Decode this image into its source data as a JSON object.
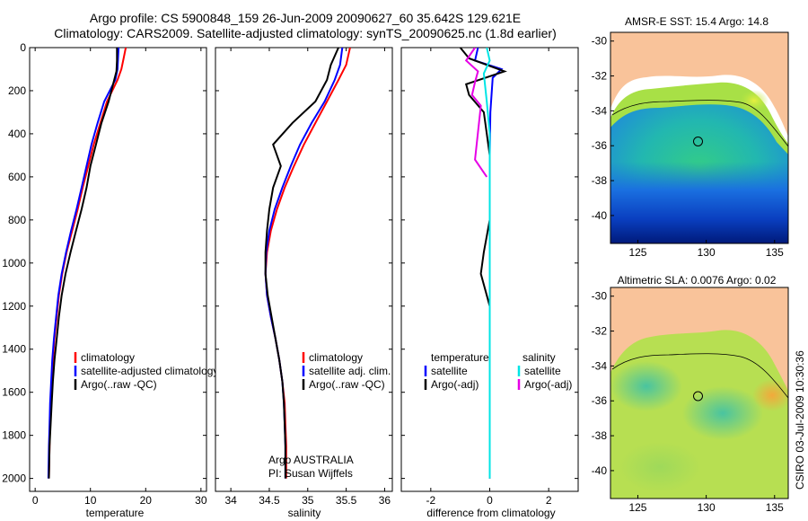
{
  "title": {
    "line1": "Argo profile: CS 5900848_159 26-Jun-2009 20090627_60 35.642S 129.621E",
    "line2": "Climatology: CARS2009. Satellite-adjusted climatology: synTS_20090625.nc (1.8d earlier)"
  },
  "side_credit": "CSIRO 03-Jul-2009 10:30:36",
  "colors": {
    "climatology": "#ff0000",
    "satellite": "#0000ff",
    "argo": "#000000",
    "sat_salinity": "#00e5e5",
    "argo_salinity": "#e600e6",
    "land": "#f9c39a"
  },
  "chart_data": [
    {
      "type": "line",
      "panel": "temperature",
      "xlabel": "temperature",
      "ylabel": "",
      "xlim": [
        -1,
        31
      ],
      "ylim": [
        2060,
        0
      ],
      "y_reversed": true,
      "xticks": [
        0,
        10,
        20,
        30
      ],
      "yticks": [
        0,
        200,
        400,
        600,
        800,
        1000,
        1200,
        1400,
        1600,
        1800,
        2000
      ],
      "legend_position": "lower-right",
      "legend": [
        "climatology",
        "satellite-adjusted climatology",
        "Argo(..raw -QC)"
      ],
      "series": [
        {
          "name": "climatology",
          "color": "#ff0000",
          "x": [
            16.4,
            16.0,
            15.6,
            14.9,
            13.0,
            11.8,
            10.6,
            9.6,
            8.6,
            7.7,
            6.7,
            5.7,
            4.9,
            4.3,
            3.9,
            3.5,
            3.2,
            3.0,
            2.8,
            2.7,
            2.6,
            2.5
          ],
          "y": [
            0,
            50,
            100,
            150,
            250,
            350,
            450,
            550,
            650,
            750,
            850,
            950,
            1050,
            1150,
            1250,
            1350,
            1450,
            1550,
            1650,
            1750,
            1850,
            2000
          ]
        },
        {
          "name": "satellite-adjusted climatology",
          "color": "#0000ff",
          "x": [
            15.1,
            15.0,
            14.9,
            14.5,
            12.5,
            11.3,
            10.2,
            9.3,
            8.4,
            7.5,
            6.5,
            5.6,
            4.8,
            4.2,
            3.8,
            3.4,
            3.1,
            2.9,
            2.7,
            2.6,
            2.5,
            2.4
          ],
          "y": [
            0,
            50,
            100,
            150,
            250,
            350,
            450,
            550,
            650,
            750,
            850,
            950,
            1050,
            1150,
            1250,
            1350,
            1450,
            1550,
            1650,
            1750,
            1850,
            2000
          ]
        },
        {
          "name": "Argo(..raw -QC)",
          "color": "#000000",
          "x": [
            14.8,
            14.8,
            14.7,
            14.3,
            13.3,
            12.0,
            11.0,
            10.0,
            9.3,
            8.4,
            7.4,
            6.4,
            5.5,
            4.8,
            4.3,
            3.9,
            3.5,
            3.2,
            3.0,
            2.8,
            2.6,
            2.5
          ],
          "y": [
            0,
            60,
            110,
            150,
            250,
            350,
            450,
            550,
            650,
            750,
            850,
            950,
            1050,
            1150,
            1250,
            1350,
            1450,
            1550,
            1650,
            1750,
            1850,
            2000
          ]
        }
      ]
    },
    {
      "type": "line",
      "panel": "salinity",
      "xlabel": "salinity",
      "ylabel": "",
      "xlim": [
        33.8,
        36.1
      ],
      "ylim": [
        2060,
        0
      ],
      "y_reversed": true,
      "xticks": [
        34,
        34.5,
        35,
        35.5,
        36
      ],
      "legend_position": "lower-right",
      "legend": [
        "climatology",
        "satellite adj. clim.",
        "Argo(..raw -QC)"
      ],
      "annotation": [
        "Argo AUSTRALIA",
        "PI: Susan Wijffels"
      ],
      "series": [
        {
          "name": "climatology",
          "color": "#ff0000",
          "x": [
            35.55,
            35.5,
            35.4,
            35.25,
            35.1,
            34.95,
            34.82,
            34.7,
            34.6,
            34.52,
            34.47,
            34.45,
            34.47,
            34.52,
            34.58,
            34.63,
            34.67,
            34.7,
            34.71,
            34.72,
            34.72
          ],
          "y": [
            0,
            80,
            150,
            250,
            350,
            450,
            550,
            650,
            750,
            850,
            950,
            1050,
            1150,
            1250,
            1350,
            1450,
            1550,
            1650,
            1750,
            1850,
            2000
          ]
        },
        {
          "name": "satellite adj. clim.",
          "color": "#0000ff",
          "x": [
            35.45,
            35.42,
            35.35,
            35.22,
            35.05,
            34.9,
            34.78,
            34.67,
            34.57,
            34.5,
            34.46,
            34.45,
            34.47,
            34.52,
            34.58,
            34.63,
            34.67,
            34.69,
            34.7,
            34.71,
            34.71
          ],
          "y": [
            0,
            80,
            150,
            250,
            350,
            450,
            550,
            650,
            750,
            850,
            950,
            1050,
            1150,
            1250,
            1350,
            1450,
            1550,
            1650,
            1750,
            1850,
            2000
          ]
        },
        {
          "name": "Argo(..raw -QC)",
          "color": "#000000",
          "x": [
            35.4,
            35.3,
            35.25,
            35.1,
            34.8,
            34.55,
            34.65,
            34.55,
            34.5,
            34.47,
            34.45,
            34.45,
            34.48,
            34.53,
            34.58,
            34.63,
            34.67,
            34.69,
            34.7,
            34.71,
            34.71
          ],
          "y": [
            0,
            80,
            150,
            250,
            350,
            450,
            550,
            650,
            750,
            850,
            950,
            1050,
            1150,
            1250,
            1350,
            1450,
            1550,
            1650,
            1750,
            1850,
            2000
          ]
        }
      ]
    },
    {
      "type": "line",
      "panel": "difference",
      "xlabel": "difference from climatology",
      "ylabel": "",
      "xlim": [
        -3,
        3
      ],
      "ylim": [
        2060,
        0
      ],
      "y_reversed": true,
      "xticks": [
        -2,
        0,
        2
      ],
      "legend_position": "lower-left",
      "legend_temperature_heading": "temperature",
      "legend_salinity_heading": "salinity",
      "legend_temperature": [
        "satellite",
        "Argo(-adj)"
      ],
      "legend_salinity": [
        "satellite",
        "Argo(-adj)"
      ],
      "series": [
        {
          "name": "satellite",
          "group": "temperature",
          "color": "#0000ff",
          "x": [
            -0.4,
            -0.5,
            0.4,
            0.1,
            0.02,
            0.0,
            0.0,
            0.0,
            0.0,
            0.0,
            0.0
          ],
          "y": [
            0,
            60,
            100,
            140,
            300,
            500,
            800,
            1100,
            1400,
            1700,
            2000
          ]
        },
        {
          "name": "Argo(-adj)",
          "group": "temperature",
          "color": "#000000",
          "x": [
            -1.0,
            -0.7,
            0.5,
            -0.8,
            -0.7,
            -0.2,
            0.0,
            0.0,
            -0.2,
            -0.3,
            0.0,
            0.0,
            0.0
          ],
          "y": [
            0,
            50,
            110,
            170,
            220,
            300,
            500,
            800,
            950,
            1050,
            1200,
            1600,
            2000
          ]
        },
        {
          "name": "satellite",
          "group": "salinity",
          "color": "#00e5e5",
          "x": [
            -0.1,
            0.0,
            -0.2,
            -0.1,
            0.0,
            0.0,
            0.0,
            0.0,
            0.0
          ],
          "y": [
            0,
            60,
            120,
            250,
            400,
            800,
            1200,
            1600,
            2000
          ]
        },
        {
          "name": "Argo(-adj)",
          "group": "salinity",
          "color": "#e600e6",
          "x": [
            -0.5,
            -0.8,
            -0.4,
            -0.5,
            -0.6,
            -0.3,
            -0.5,
            -0.1
          ],
          "y": [
            0,
            60,
            110,
            160,
            220,
            270,
            520,
            600
          ]
        }
      ]
    },
    {
      "type": "heatmap",
      "panel": "sst_map",
      "title": "AMSR-E SST: 15.4  Argo: 14.8",
      "xlim": [
        123,
        136
      ],
      "ylim": [
        -41.6,
        -29.5
      ],
      "xticks": [
        125,
        130,
        135
      ],
      "yticks": [
        -30,
        -32,
        -34,
        -36,
        -38,
        -40
      ],
      "marker": {
        "lon": 129.621,
        "lat": -35.642
      }
    },
    {
      "type": "heatmap",
      "panel": "sla_map",
      "title": "Altimetric SLA: 0.0076  Argo: 0.02",
      "xlim": [
        123,
        136
      ],
      "ylim": [
        -41.6,
        -29.5
      ],
      "xticks": [
        125,
        130,
        135
      ],
      "yticks": [
        -30,
        -32,
        -34,
        -36,
        -38,
        -40
      ],
      "marker": {
        "lon": 129.621,
        "lat": -35.642
      }
    }
  ]
}
